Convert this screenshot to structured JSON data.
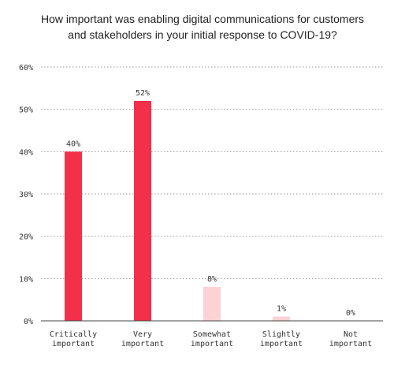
{
  "chart_data": {
    "type": "bar",
    "title_lines": [
      "How important was enabling digital communications for customers",
      "and stakeholders in your initial response to COVID-19?"
    ],
    "categories": [
      [
        "Critically",
        "important"
      ],
      [
        "Very",
        "important"
      ],
      [
        "Somewhat",
        "important"
      ],
      [
        "Slightly",
        "important"
      ],
      [
        "Not",
        "important"
      ]
    ],
    "values": [
      40,
      52,
      8,
      1,
      0
    ],
    "data_labels": [
      "40%",
      "52%",
      "8%",
      "1%",
      "0%"
    ],
    "bar_colors": [
      "#f2304a",
      "#f2304a",
      "#fcd2d4",
      "#fcd2d4",
      "#fcd2d4"
    ],
    "yticks": [
      0,
      10,
      20,
      30,
      40,
      50,
      60
    ],
    "ytick_labels": [
      "0%",
      "10%",
      "20%",
      "30%",
      "40%",
      "50%",
      "60%"
    ],
    "ylim": [
      0,
      60
    ],
    "xlabel": "",
    "ylabel": "",
    "grid": true,
    "grid_style": "dotted",
    "colors": {
      "title": "#1f1f1f",
      "text": "#333333",
      "grid": "#9a9a9a",
      "axis": "#444444"
    }
  }
}
